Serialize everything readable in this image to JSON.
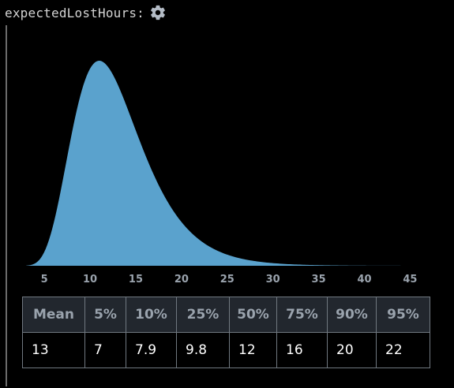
{
  "header": {
    "variable_name": "expectedLostHours:",
    "settings_icon": "gear-icon"
  },
  "chart_data": {
    "type": "area",
    "xlim": [
      3,
      46
    ],
    "xticks": [
      5,
      10,
      15,
      20,
      25,
      30,
      35,
      40,
      45
    ],
    "fill_color": "#5aa2cd",
    "distribution": "right-skewed density",
    "peak_x": 11
  },
  "table": {
    "headers": [
      "Mean",
      "5%",
      "10%",
      "25%",
      "50%",
      "75%",
      "90%",
      "95%"
    ],
    "values": [
      "13",
      "7",
      "7.9",
      "9.8",
      "12",
      "16",
      "20",
      "22"
    ]
  },
  "colors": {
    "background": "#000000",
    "header_cell": "#22272e",
    "header_text": "#9aa3ad",
    "border": "#707880"
  }
}
